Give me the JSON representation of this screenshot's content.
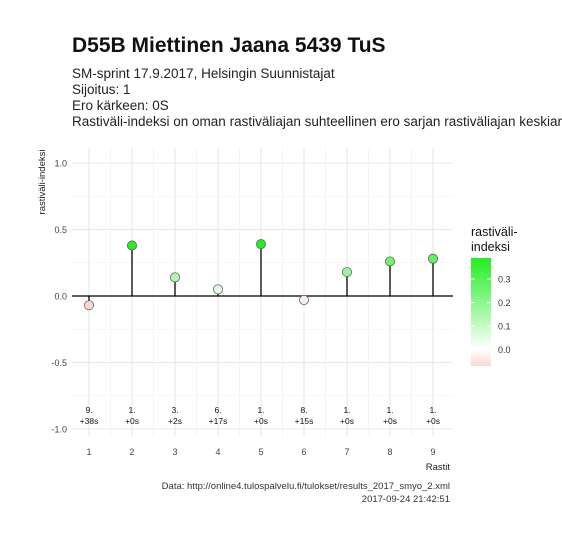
{
  "title": "D55B Miettinen Jaana 5439 TuS",
  "subtitle_lines": [
    "SM-sprint 17.9.2017, Helsingin Suunnistajat",
    "Sijoitus: 1",
    "Ero kärkeen: 0S",
    "Rastiväli-indeksi on oman rastiväliajan suhteellinen ero sarjan rastiväliajan keskiarvoon"
  ],
  "caption": {
    "source": "Data: http://online4.tulospalvelu.fi/tulokset/results_2017_smyo_2.xml",
    "timestamp": "2017-09-24 21:42:51"
  },
  "colors": {
    "low": "#f8d9cf",
    "mid": "#ffffff",
    "high": "#22ee22",
    "stem": "#000000",
    "grid": "#e0e0e0"
  },
  "chart_data": {
    "type": "lollipop",
    "xlabel": "Rastit",
    "ylabel": "rastiväli-indeksi",
    "ylim": [
      -1.0,
      1.0
    ],
    "yticks": [
      "1.0",
      "0.5",
      "0.0",
      "-0.5",
      "-1.0"
    ],
    "ytick_values": [
      1.0,
      0.5,
      0.0,
      -0.5,
      -1.0
    ],
    "x": [
      1,
      2,
      3,
      4,
      5,
      6,
      7,
      8,
      9
    ],
    "values": [
      -0.07,
      0.38,
      0.14,
      0.05,
      0.39,
      -0.03,
      0.18,
      0.26,
      0.28
    ],
    "labels_rank": [
      "9.",
      "1.",
      "3.",
      "6.",
      "1.",
      "8.",
      "1.",
      "1.",
      "1."
    ],
    "labels_diff": [
      "+38s",
      "+0s",
      "+2s",
      "+17s",
      "+0s",
      "+15s",
      "+0s",
      "+0s",
      "+0s"
    ],
    "legend": {
      "title_lines": [
        "rastiväli-",
        "indeksi"
      ],
      "ticks": [
        "0.3",
        "0.2",
        "0.1",
        "0.0"
      ],
      "tick_values": [
        0.3,
        0.2,
        0.1,
        0.0
      ],
      "range": [
        -0.07,
        0.39
      ],
      "placement": "right"
    },
    "grid": true
  }
}
